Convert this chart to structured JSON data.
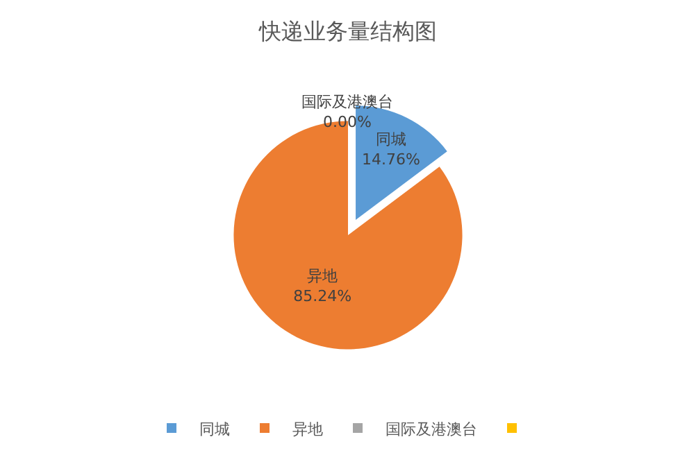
{
  "chart_data": {
    "type": "pie",
    "title": "快递业务量结构图",
    "categories": [
      "同城",
      "异地",
      "国际及港澳台",
      null
    ],
    "values": [
      14.76,
      85.24,
      0.0,
      0
    ],
    "colors": [
      "#5b9bd5",
      "#ed7d31",
      "#a5a5a5",
      "#ffc000"
    ],
    "value_labels": [
      "14.76%",
      "85.24%",
      "0.00%",
      null
    ],
    "legend": "bottom"
  }
}
